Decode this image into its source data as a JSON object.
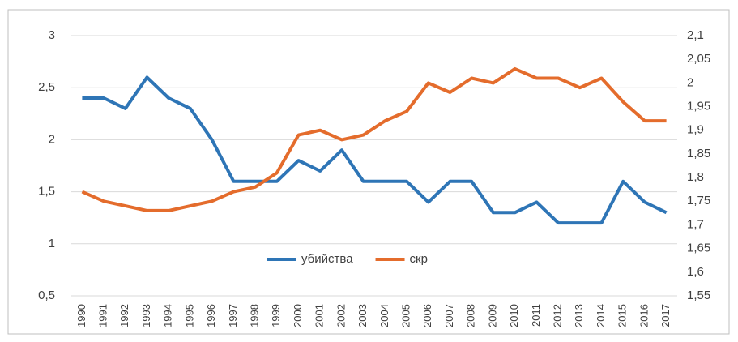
{
  "chart_data": {
    "type": "line",
    "categories": [
      "1990",
      "1991",
      "1992",
      "1993",
      "1994",
      "1995",
      "1996",
      "1997",
      "1998",
      "1999",
      "2000",
      "2001",
      "2002",
      "2003",
      "2004",
      "2005",
      "2006",
      "2007",
      "2008",
      "2009",
      "2010",
      "2011",
      "2012",
      "2013",
      "2014",
      "2015",
      "2016",
      "2017"
    ],
    "series": [
      {
        "name": "убийства",
        "color": "#2e75b6",
        "values": [
          2.4,
          2.4,
          2.3,
          2.6,
          2.4,
          2.3,
          2.0,
          1.6,
          1.6,
          1.6,
          1.8,
          1.7,
          1.9,
          1.6,
          1.6,
          1.6,
          1.4,
          1.6,
          1.6,
          1.3,
          1.3,
          1.4,
          1.2,
          1.2,
          1.2,
          1.6,
          1.4,
          1.3
        ]
      },
      {
        "name": "скр",
        "color": "#e46c2c",
        "axis": "y2",
        "values": [
          1.77,
          1.75,
          1.74,
          1.73,
          1.73,
          1.74,
          1.75,
          1.77,
          1.78,
          1.81,
          1.89,
          1.9,
          1.88,
          1.89,
          1.92,
          1.94,
          2.0,
          1.98,
          2.01,
          2.0,
          2.03,
          2.01,
          2.01,
          1.99,
          2.01,
          1.96,
          1.92,
          1.92
        ]
      }
    ],
    "ylim": [
      0.5,
      3
    ],
    "yticks": [
      {
        "value": 0.5,
        "label": "0,5"
      },
      1,
      {
        "value": 1.5,
        "label": "1,5"
      },
      2,
      {
        "value": 2.5,
        "label": "2,5"
      },
      3
    ],
    "y2lim": [
      1.55,
      2.1
    ],
    "y2ticks": [
      {
        "value": 1.55,
        "label": "1,55"
      },
      {
        "value": 1.6,
        "label": "1,6"
      },
      {
        "value": 1.65,
        "label": "1,65"
      },
      {
        "value": 1.7,
        "label": "1,7"
      },
      {
        "value": 1.75,
        "label": "1,75"
      },
      {
        "value": 1.8,
        "label": "1,8"
      },
      {
        "value": 1.85,
        "label": "1,85"
      },
      {
        "value": 1.9,
        "label": "1,9"
      },
      {
        "value": 1.95,
        "label": "1,95"
      },
      2,
      {
        "value": 2.05,
        "label": "2,05"
      },
      {
        "value": 2.1,
        "label": "2,1"
      }
    ],
    "grid": true,
    "legend": "center"
  }
}
